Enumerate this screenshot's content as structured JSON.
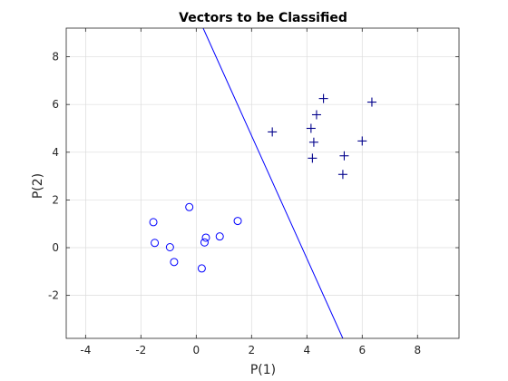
{
  "chart_data": {
    "type": "scatter",
    "title": "Vectors to be Classified",
    "xlabel": "P(1)",
    "ylabel": "P(2)",
    "xlim": [
      -4.7,
      9.5
    ],
    "ylim": [
      -3.8,
      9.2
    ],
    "x_ticks": [
      -4,
      -2,
      0,
      2,
      4,
      6,
      8
    ],
    "y_ticks": [
      -2,
      0,
      2,
      4,
      6,
      8
    ],
    "x_tick_labels": [
      "-4",
      "-2",
      "0",
      "2",
      "4",
      "6",
      "8"
    ],
    "y_tick_labels": [
      "-2",
      "0",
      "2",
      "4",
      "6",
      "8"
    ],
    "grid": true,
    "legend": "none",
    "series": [
      {
        "marker": "circle",
        "color": "#0000ff",
        "x": [
          -1.55,
          -1.5,
          -0.25,
          -0.95,
          -0.8,
          0.2,
          0.3,
          0.35,
          0.85,
          1.5
        ],
        "y": [
          1.07,
          0.2,
          1.7,
          0.02,
          -0.6,
          -0.87,
          0.22,
          0.42,
          0.47,
          1.12
        ]
      },
      {
        "marker": "plus",
        "color": "#00008b",
        "x": [
          2.75,
          4.15,
          4.2,
          4.25,
          4.35,
          4.6,
          5.3,
          5.35,
          6.0,
          6.35
        ],
        "y": [
          4.85,
          5.0,
          3.75,
          4.42,
          5.57,
          6.25,
          3.07,
          3.85,
          4.47,
          6.1
        ]
      }
    ],
    "decision_line": {
      "color": "#0000ff",
      "x": [
        0.25,
        5.3
      ],
      "y": [
        9.2,
        -3.8
      ]
    }
  }
}
